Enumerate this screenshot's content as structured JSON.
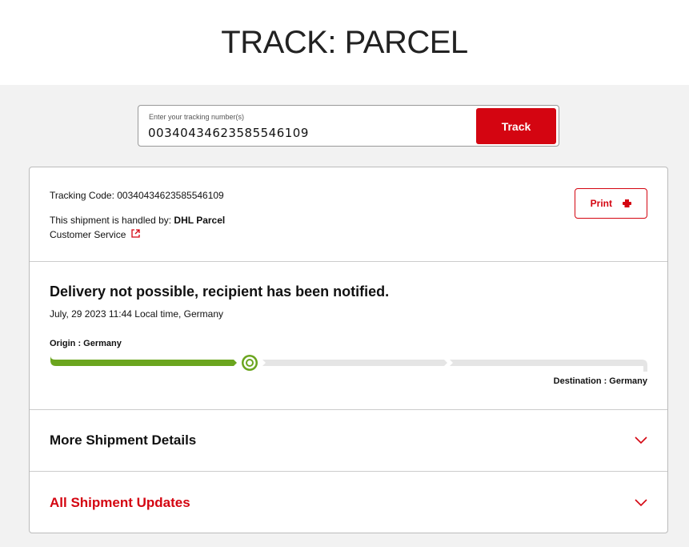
{
  "page": {
    "title": "TRACK: PARCEL"
  },
  "search": {
    "label": "Enter your tracking number(s)",
    "value": "00340434623585546109",
    "button": "Track"
  },
  "shipment": {
    "tracking_code": "Tracking Code: 00340434623585546109",
    "handled_by_prefix": "This shipment is handled by: ",
    "carrier": "DHL Parcel",
    "customer_service": "Customer Service",
    "print": "Print"
  },
  "status": {
    "headline": "Delivery not possible, recipient has been notified.",
    "date": "July, 29 2023 11:44 Local time, Germany",
    "origin": "Origin : Germany",
    "destination": "Destination : Germany",
    "progress_steps_completed": 1,
    "progress_steps_total": 3,
    "colors": {
      "done": "#6ba51e",
      "pending": "#e5e5e5",
      "accent": "#d40511"
    }
  },
  "accordions": [
    {
      "label": "More Shipment Details"
    },
    {
      "label": "All Shipment Updates"
    }
  ]
}
